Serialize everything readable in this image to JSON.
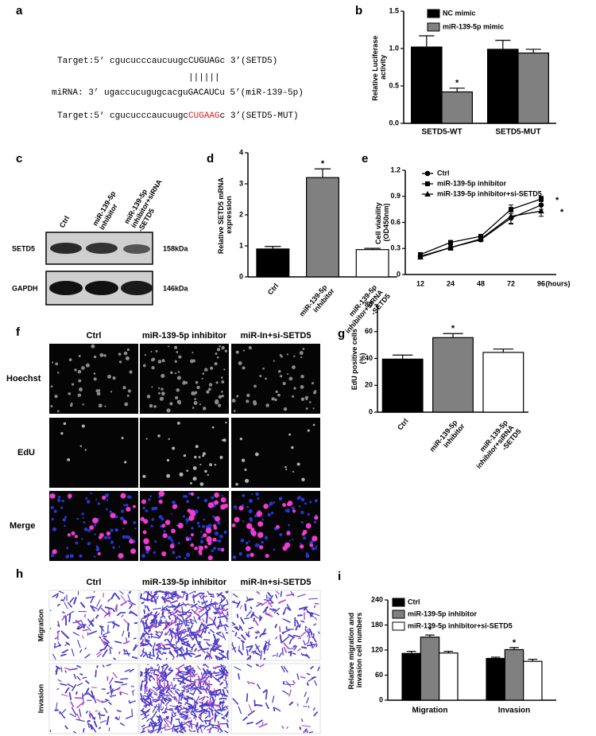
{
  "panel_letters": [
    "a",
    "b",
    "c",
    "d",
    "e",
    "f",
    "g",
    "h",
    "i"
  ],
  "sequence": {
    "target": "Target:5‘ cgucucccaucuugcCUGUAGc 3’(SETD5)",
    "pairing": "||||||",
    "mirna": "miRNA: 3’ ugaccucugugcacguGACAUCu 5’(miR-139-5p)",
    "mutant": [
      "Target:5‘ cgucucccaucuugc",
      "CUGAAG",
      "c 3’(SETD5-MUT)"
    ]
  },
  "western": {
    "columns": [
      "Ctrl",
      "miR-139-5p inhibitor",
      "miR-139-5p inhibitor+siRNA -SETD5"
    ],
    "rows": [
      {
        "label": "SETD5",
        "size": "158kDa"
      },
      {
        "label": "GAPDH",
        "size": "146kDa"
      }
    ]
  },
  "edu_images": {
    "columns": [
      "Ctrl",
      "miR-139-5p inhibitor",
      "miR-In+si-SETD5"
    ],
    "rows": [
      "Hoechst",
      "EdU",
      "Merge"
    ]
  },
  "transwell_images": {
    "columns": [
      "Ctrl",
      "miR-139-5p inhibitor",
      "miR-In+si-SETD5"
    ],
    "rows": [
      "Migration",
      "Invasion"
    ]
  },
  "chart_data": [
    {
      "type": "bar",
      "ylabel": "Relative Luciferase activity",
      "categories": [
        "SETD5-WT",
        "SETD5-MUT"
      ],
      "series": [
        {
          "name": "NC mimic",
          "color": "#000000",
          "values": [
            1.02,
            0.99
          ],
          "errors": [
            0.15,
            0.12
          ]
        },
        {
          "name": "miR-139-5p mimic",
          "color": "#808080",
          "values": [
            0.42,
            0.94
          ],
          "errors": [
            0.05,
            0.05
          ],
          "labels": [
            "*",
            null
          ]
        }
      ],
      "ylim": [
        0,
        1.5
      ],
      "yticks": [
        {
          "value": 0,
          "label": "0.0"
        },
        0.5,
        {
          "value": 1,
          "label": "1.0"
        },
        1.5
      ],
      "legend": "top-left"
    },
    {
      "type": "bar",
      "ylabel": "Relative SETD5 mRNA expression",
      "categories": [
        "Ctrl",
        "miR-139-5p inhibitor",
        "miR-139-5p inhibitor+siRNA -SETD5"
      ],
      "values": [
        0.9,
        3.2,
        0.88
      ],
      "errors": [
        0.08,
        0.28,
        0.04
      ],
      "colors": [
        "#000000",
        "#808080",
        "#ffffff"
      ],
      "labels": [
        null,
        "*",
        null
      ],
      "ylim": [
        0,
        4
      ],
      "yticks": [
        0,
        1,
        2,
        3,
        4
      ]
    },
    {
      "type": "line",
      "ylabel": "Cell viability (OD450nm)",
      "xlabel": "(hours)",
      "categories": [
        "12",
        "24",
        "48",
        "72",
        "96"
      ],
      "series": [
        {
          "name": "Ctrl",
          "color": "#000000",
          "marker": "circle",
          "values": [
            0.21,
            0.31,
            0.4,
            0.65,
            0.8
          ],
          "errors": [
            0.02,
            0.03,
            0.02,
            0.07,
            0.05
          ]
        },
        {
          "name": "miR-139-5p inhibitor",
          "color": "#000000",
          "marker": "square",
          "values": [
            0.23,
            0.37,
            0.44,
            0.75,
            0.87
          ],
          "errors": [
            0.02,
            0.02,
            0.02,
            0.05,
            0.03
          ],
          "labels": [
            null,
            null,
            null,
            null,
            "*"
          ]
        },
        {
          "name": "miR-139-5p inhibitor+si-SETD5",
          "color": "#000000",
          "marker": "triangle",
          "values": [
            0.2,
            0.31,
            0.41,
            0.67,
            0.73
          ],
          "errors": [
            0.02,
            0.03,
            0.02,
            0.08,
            0.06
          ],
          "labels": [
            null,
            null,
            null,
            null,
            "*"
          ]
        }
      ],
      "ylim": [
        0,
        1.2
      ],
      "yticks": [
        0,
        0.3,
        0.6,
        0.9,
        1.2
      ],
      "legend": "top-left"
    },
    {
      "type": "bar",
      "ylabel": "EdU positive cells (%)",
      "categories": [
        "Ctrl",
        "miR-139-5p inhibitor",
        "miR-139-5p inhibitor+siRNA -SETD5"
      ],
      "values": [
        39.5,
        55.5,
        44.5
      ],
      "errors": [
        3,
        3,
        2.5
      ],
      "colors": [
        "#000000",
        "#808080",
        "#ffffff"
      ],
      "labels": [
        null,
        "*",
        null
      ],
      "ylim": [
        0,
        80
      ],
      "yticks": [
        0,
        20,
        40,
        60,
        80
      ]
    },
    {
      "type": "bar",
      "ylabel": "Relative migration and invasion cell numbers",
      "categories": [
        "Migration",
        "Invasion"
      ],
      "series": [
        {
          "name": "Ctrl",
          "color": "#000000",
          "values": [
            112,
            100
          ],
          "errors": [
            5,
            3
          ]
        },
        {
          "name": "miR-139-5p inhibitor",
          "color": "#808080",
          "values": [
            151,
            121
          ],
          "errors": [
            5,
            5
          ],
          "labels": [
            "*",
            "*"
          ]
        },
        {
          "name": "miR-139-5p inhibitor+si-SETD5",
          "color": "#ffffff",
          "values": [
            113,
            93
          ],
          "errors": [
            4,
            5
          ]
        }
      ],
      "ylim": [
        0,
        240
      ],
      "yticks": [
        0,
        60,
        120,
        180,
        240
      ],
      "legend": "top-left"
    }
  ]
}
